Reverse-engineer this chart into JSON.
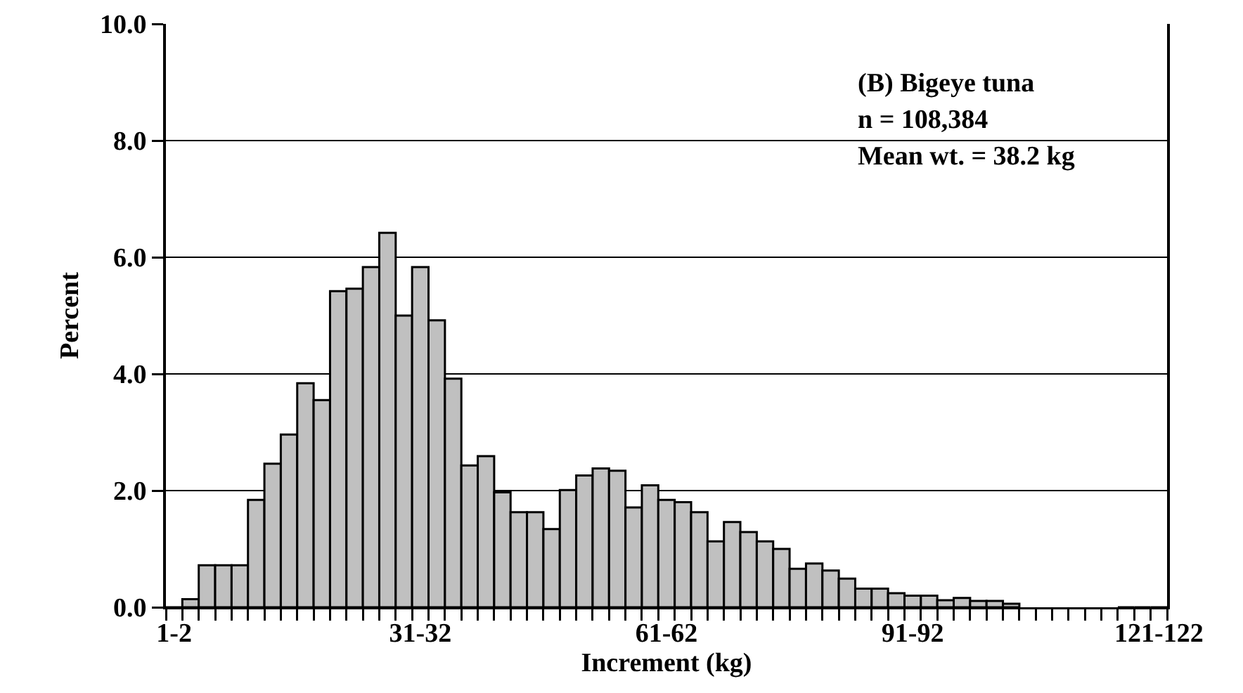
{
  "chart_data": {
    "type": "bar",
    "xlabel": "Increment (kg)",
    "ylabel": "Percent",
    "annotations": [
      "(B) Bigeye tuna",
      "n = 108,384",
      "Mean wt. = 38.2 kg"
    ],
    "categories": [
      "1-2",
      null,
      null,
      null,
      null,
      null,
      null,
      null,
      null,
      null,
      null,
      null,
      null,
      null,
      null,
      "31-32",
      null,
      null,
      null,
      null,
      null,
      null,
      null,
      null,
      null,
      null,
      null,
      null,
      null,
      null,
      "61-62",
      null,
      null,
      null,
      null,
      null,
      null,
      null,
      null,
      null,
      null,
      null,
      null,
      null,
      null,
      "91-92",
      null,
      null,
      null,
      null,
      null,
      null,
      null,
      null,
      null,
      null,
      null,
      null,
      null,
      null,
      "121-122"
    ],
    "values": [
      0,
      0.14,
      0.72,
      0.72,
      0.72,
      1.84,
      2.46,
      2.96,
      3.84,
      3.55,
      5.42,
      5.46,
      5.83,
      6.42,
      5.0,
      5.83,
      4.92,
      3.92,
      2.43,
      2.59,
      1.97,
      1.63,
      1.63,
      1.34,
      2.01,
      2.26,
      2.38,
      2.34,
      1.71,
      2.09,
      1.84,
      1.8,
      1.63,
      1.13,
      1.46,
      1.29,
      1.13,
      1.0,
      0.66,
      0.75,
      0.63,
      0.49,
      0.32,
      0.32,
      0.24,
      0.2,
      0.2,
      0.12,
      0.16,
      0.11,
      0.11,
      0.06,
      null,
      null,
      null,
      null,
      null,
      null,
      0,
      0,
      0
    ],
    "color": "#c0c0c0",
    "ylim": [
      0,
      10
    ],
    "yticks": [
      {
        "value": 0,
        "label": "0.0"
      },
      {
        "value": 2,
        "label": "2.0"
      },
      {
        "value": 4,
        "label": "4.0"
      },
      {
        "value": 6,
        "label": "6.0"
      },
      {
        "value": 8,
        "label": "8.0"
      },
      {
        "value": 10,
        "label": "10.0"
      }
    ],
    "grid": "y",
    "legend": false
  }
}
